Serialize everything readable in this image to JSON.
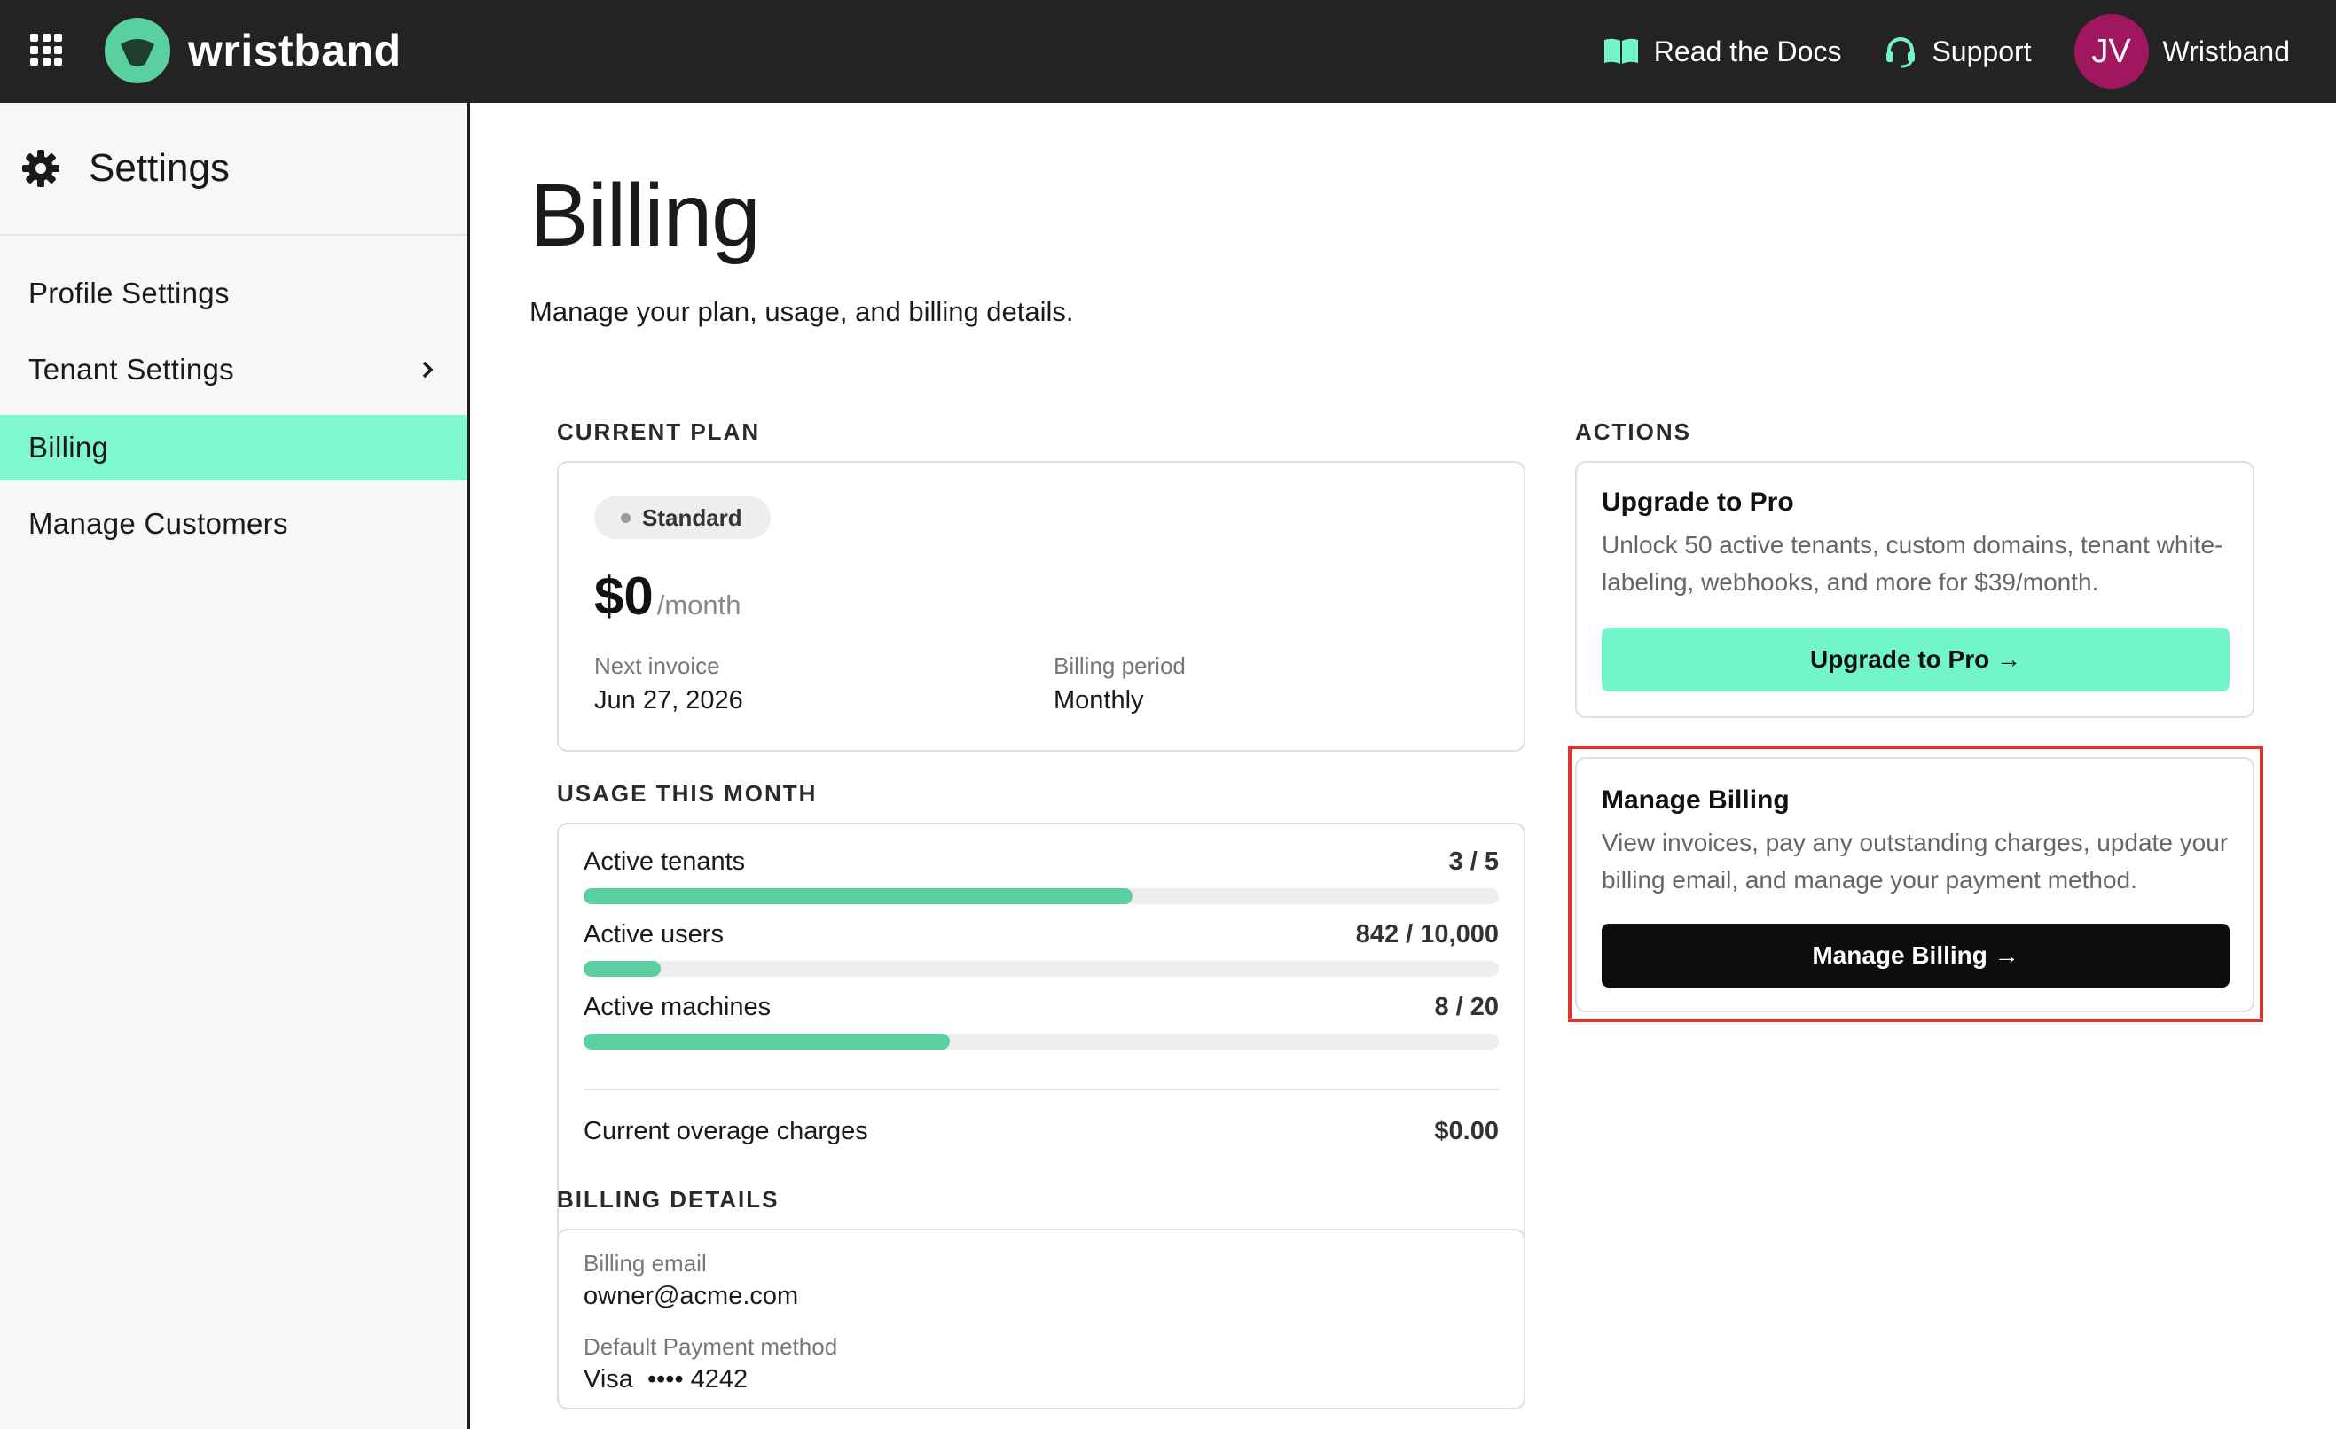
{
  "topbar": {
    "brand": "wristband",
    "docs_label": "Read the Docs",
    "support_label": "Support",
    "avatar_initials": "JV",
    "account_name": "Wristband"
  },
  "sidebar": {
    "title": "Settings",
    "items": [
      {
        "label": "Profile Settings"
      },
      {
        "label": "Tenant Settings"
      },
      {
        "label": "Billing"
      },
      {
        "label": "Manage Customers"
      }
    ]
  },
  "page": {
    "title": "Billing",
    "subtitle": "Manage your plan, usage, and billing details."
  },
  "current_plan": {
    "section_label": "CURRENT PLAN",
    "plan_name": "Standard",
    "price": "$0",
    "price_period": "/month",
    "next_invoice_label": "Next invoice",
    "next_invoice_value": "Jun 27, 2026",
    "billing_period_label": "Billing period",
    "billing_period_value": "Monthly"
  },
  "usage": {
    "section_label": "USAGE THIS MONTH",
    "rows": [
      {
        "label": "Active tenants",
        "value": "3 / 5",
        "fraction": 0.6
      },
      {
        "label": "Active users",
        "value": "842 / 10,000",
        "fraction": 0.0842
      },
      {
        "label": "Active machines",
        "value": "8 / 20",
        "fraction": 0.4
      }
    ],
    "overage_label": "Current overage charges",
    "overage_value": "$0.00"
  },
  "billing_details": {
    "section_label": "BILLING DETAILS",
    "email_label": "Billing email",
    "email_value": "owner@acme.com",
    "payment_label": "Default Payment method",
    "payment_value": "Visa  •••• 4242"
  },
  "actions": {
    "section_label": "ACTIONS",
    "upgrade": {
      "title": "Upgrade to Pro",
      "description": "Unlock 50 active tenants, custom domains, tenant white-labeling, webhooks, and more for $39/month.",
      "button": "Upgrade to Pro →"
    },
    "manage": {
      "title": "Manage Billing",
      "description": "View invoices, pay any outstanding charges, update your billing email, and manage your payment method.",
      "button": "Manage Billing →"
    }
  },
  "colors": {
    "topbar_bg": "#232323",
    "accent_mint": "#72f5c8",
    "sidebar_active": "#7ff8cf",
    "bar_fill": "#5ad0a0",
    "avatar_bg": "#a0165f",
    "highlight": "#e0352b"
  },
  "icons": [
    "apps-grid-icon",
    "wristband-logo-icon",
    "book-icon",
    "headset-icon",
    "gear-icon",
    "chevron-right-icon"
  ]
}
